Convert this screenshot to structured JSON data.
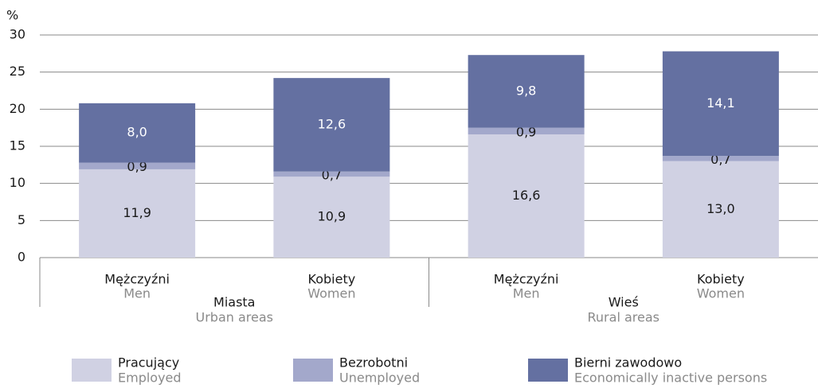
{
  "chart_data": {
    "type": "stacked_bar",
    "y_unit": "%",
    "categories": [
      "Mężczyźni",
      "Kobiety",
      "Mężczyźni",
      "Kobiety"
    ],
    "categories_en": [
      "Men",
      "Women",
      "Men",
      "Women"
    ],
    "groups": [
      {
        "label": "Miasta",
        "label_en": "Urban areas"
      },
      {
        "label": "Wieś",
        "label_en": "Rural areas"
      }
    ],
    "series": [
      {
        "name": "Pracujący",
        "name_en": "Employed",
        "color": "#d0d1e3",
        "values": [
          11.9,
          10.9,
          16.6,
          13.0
        ],
        "value_labels": [
          "11,9",
          "10,9",
          "16,6",
          "13,0"
        ]
      },
      {
        "name": "Bezrobotni",
        "name_en": "Unemployed",
        "color": "#a3a8cb",
        "values": [
          0.9,
          0.7,
          0.9,
          0.7
        ],
        "value_labels": [
          "0,9",
          "0,7",
          "0,9",
          "0,7"
        ]
      },
      {
        "name": "Bierni zawodowo",
        "name_en": "Economically inactive persons",
        "color": "#6470a1",
        "values": [
          8.0,
          12.6,
          9.8,
          14.1
        ],
        "value_labels": [
          "8,0",
          "12,6",
          "9,8",
          "14,1"
        ]
      }
    ],
    "ylim": [
      0,
      30
    ],
    "yticks": [
      0,
      5,
      10,
      15,
      20,
      25,
      30
    ],
    "grid": true
  }
}
